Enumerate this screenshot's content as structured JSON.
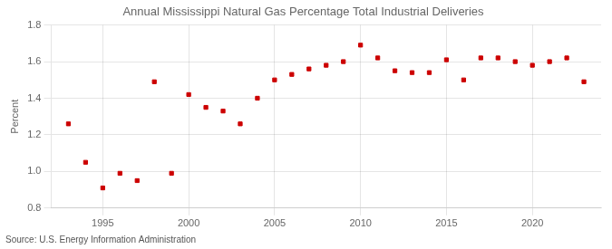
{
  "chart_data": {
    "type": "scatter",
    "title": "Annual Mississippi Natural Gas Percentage Total Industrial Deliveries",
    "ylabel": "Percent",
    "annotations": [
      "Source: U.S. Energy Information Administration"
    ],
    "x": [
      1993,
      1994,
      1995,
      1996,
      1997,
      1998,
      1999,
      2000,
      2001,
      2002,
      2003,
      2004,
      2005,
      2006,
      2007,
      2008,
      2009,
      2010,
      2011,
      2012,
      2013,
      2014,
      2015,
      2016,
      2017,
      2018,
      2019,
      2020,
      2021,
      2022,
      2023
    ],
    "values": [
      1.26,
      1.05,
      0.91,
      0.99,
      0.95,
      1.49,
      0.99,
      1.42,
      1.35,
      1.33,
      1.26,
      1.4,
      1.5,
      1.53,
      1.56,
      1.58,
      1.6,
      1.69,
      1.62,
      1.55,
      1.54,
      1.54,
      1.61,
      1.5,
      1.62,
      1.62,
      1.6,
      1.58,
      1.6,
      1.62,
      1.49
    ],
    "color": "#cc0000",
    "marker": "square",
    "xlim": [
      1992,
      2024
    ],
    "xticks": [
      1995,
      2000,
      2005,
      2010,
      2015,
      2020
    ],
    "ylim": [
      0.8,
      1.8
    ],
    "yticks": [
      0.8,
      {
        "value": 1.0,
        "label": "1.0"
      },
      1.2,
      1.4,
      1.6,
      1.8
    ],
    "grid": true
  }
}
